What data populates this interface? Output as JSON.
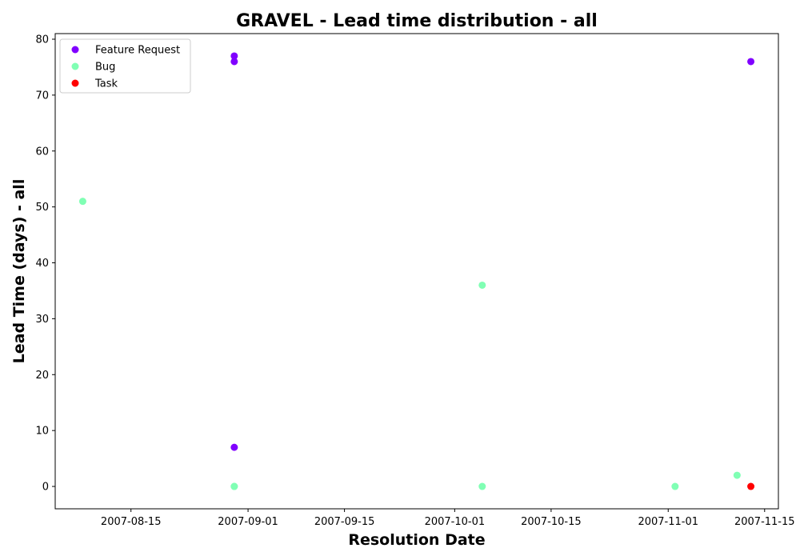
{
  "chart_data": {
    "type": "scatter",
    "title": "GRAVEL - Lead time distribution - all",
    "xlabel": "Resolution Date",
    "ylabel": "Lead Time (days) - all",
    "xlim": [
      "2007-08-04",
      "2007-11-17"
    ],
    "ylim": [
      -4,
      81
    ],
    "x_ticks": [
      "2007-08-15",
      "2007-09-01",
      "2007-09-15",
      "2007-10-01",
      "2007-10-15",
      "2007-11-01",
      "2007-11-15"
    ],
    "y_ticks": [
      0,
      10,
      20,
      30,
      40,
      50,
      60,
      70,
      80
    ],
    "grid": false,
    "legend_position": "top-left",
    "series": [
      {
        "name": "Feature Request",
        "color": "#8000ff",
        "points": [
          {
            "x": "2007-08-30",
            "y": 76
          },
          {
            "x": "2007-08-30",
            "y": 77
          },
          {
            "x": "2007-08-30",
            "y": 7
          },
          {
            "x": "2007-11-13",
            "y": 76
          }
        ]
      },
      {
        "name": "Bug",
        "color": "#80ffb4",
        "points": [
          {
            "x": "2007-08-08",
            "y": 51
          },
          {
            "x": "2007-08-30",
            "y": 0
          },
          {
            "x": "2007-08-30",
            "y": 0
          },
          {
            "x": "2007-10-05",
            "y": 36
          },
          {
            "x": "2007-10-05",
            "y": 0
          },
          {
            "x": "2007-11-02",
            "y": 0
          },
          {
            "x": "2007-11-11",
            "y": 2
          }
        ]
      },
      {
        "name": "Task",
        "color": "#ff0000",
        "points": [
          {
            "x": "2007-11-13",
            "y": 0
          }
        ]
      }
    ]
  }
}
